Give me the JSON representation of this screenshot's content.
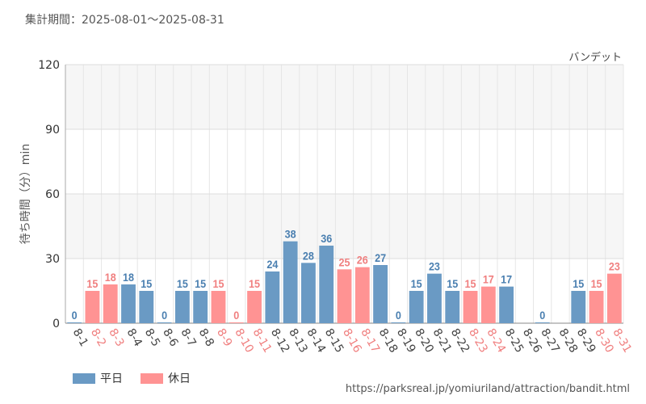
{
  "header": {
    "period": "集計期間：2025-08-01～2025-08-31",
    "attraction": "バンデット"
  },
  "legend": {
    "weekday": "平日",
    "holiday": "休日"
  },
  "footer": {
    "source_url": "https://parksreal.jp/yomiuriland/attraction/bandit.html"
  },
  "colors": {
    "weekday": "#6a9ac4",
    "holiday": "#ff9393",
    "weekday_label": "#4a7fb0",
    "holiday_label": "#f07f7f"
  },
  "chart_data": {
    "type": "bar",
    "title": "",
    "xlabel": "",
    "ylabel": "待ち時間（分）min",
    "ylim": [
      0,
      120
    ],
    "yticks": [
      0,
      30,
      60,
      90,
      120
    ],
    "categories": [
      "8-1",
      "8-2",
      "8-3",
      "8-4",
      "8-5",
      "8-6",
      "8-7",
      "8-8",
      "8-9",
      "8-10",
      "8-11",
      "8-12",
      "8-13",
      "8-14",
      "8-15",
      "8-16",
      "8-17",
      "8-18",
      "8-19",
      "8-20",
      "8-21",
      "8-22",
      "8-23",
      "8-24",
      "8-25",
      "8-26",
      "8-27",
      "8-28",
      "8-29",
      "8-30",
      "8-31"
    ],
    "values": [
      0,
      15,
      18,
      18,
      15,
      0,
      15,
      15,
      15,
      0,
      15,
      24,
      38,
      28,
      36,
      25,
      26,
      27,
      0,
      15,
      23,
      15,
      15,
      17,
      17,
      null,
      0,
      null,
      15,
      15,
      23
    ],
    "day_type": [
      "weekday",
      "holiday",
      "holiday",
      "weekday",
      "weekday",
      "weekday",
      "weekday",
      "weekday",
      "holiday",
      "holiday",
      "holiday",
      "weekday",
      "weekday",
      "weekday",
      "weekday",
      "holiday",
      "holiday",
      "weekday",
      "weekday",
      "weekday",
      "weekday",
      "weekday",
      "holiday",
      "holiday",
      "weekday",
      "weekday",
      "weekday",
      "weekday",
      "weekday",
      "holiday",
      "holiday"
    ],
    "grid": true,
    "legend_position": "bottom-left"
  }
}
